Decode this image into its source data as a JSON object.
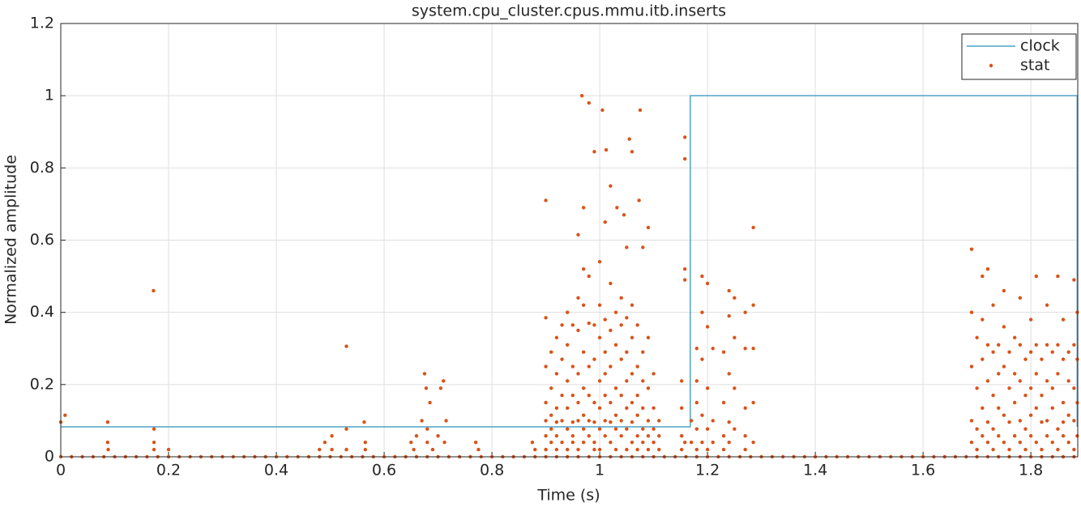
{
  "chart_data": {
    "type": "scatter",
    "title": "system.cpu_cluster.cpus.mmu.itb.inserts",
    "xlabel": "Time (s)",
    "ylabel": "Normalized amplitude",
    "xlim": [
      0,
      1.887
    ],
    "ylim": [
      0,
      1.2
    ],
    "xticks": [
      0,
      0.2,
      0.4,
      0.6,
      0.8,
      1,
      1.2,
      1.4,
      1.6,
      1.8
    ],
    "yticks": [
      0,
      0.2,
      0.4,
      0.6,
      0.8,
      1,
      1.2
    ],
    "grid": true,
    "legend": "top-right",
    "series": [
      {
        "name": "clock",
        "type": "line",
        "color": "#4fa3c7",
        "x": [
          0,
          1.168,
          1.168,
          1.886,
          1.886
        ],
        "values": [
          0.083,
          0.083,
          1,
          1,
          0.083
        ]
      },
      {
        "name": "stat",
        "type": "scatter",
        "color": "#d95319",
        "x": [
          0,
          0.008,
          0.087,
          0.087,
          0.088,
          0.172,
          0.173,
          0.173,
          0.173,
          0.2,
          0.48,
          0.49,
          0.503,
          0.503,
          0.53,
          0.53,
          0.53,
          0.563,
          0.565,
          0.565,
          0.65,
          0.655,
          0.66,
          0.67,
          0.675,
          0.678,
          0.68,
          0.68,
          0.685,
          0.69,
          0.7,
          0.705,
          0.71,
          0.712,
          0.715,
          0.77,
          0.775,
          0.875,
          0.88,
          0.9,
          0.967,
          0.97,
          0.96,
          0.98,
          0.99,
          1.005,
          1.012,
          1.02,
          1.032,
          1.055,
          1.06,
          1.075,
          1.073,
          1.09,
          1.0,
          1.01,
          1.045,
          0.97,
          1.05,
          1.08,
          0.9,
          0.9,
          0.9,
          0.9,
          0.9,
          0.9,
          0.91,
          0.91,
          0.91,
          0.91,
          0.91,
          0.92,
          0.92,
          0.92,
          0.92,
          0.92,
          0.92,
          0.93,
          0.93,
          0.93,
          0.93,
          0.93,
          0.94,
          0.94,
          0.94,
          0.94,
          0.94,
          0.94,
          0.95,
          0.95,
          0.95,
          0.95,
          0.95,
          0.95,
          0.96,
          0.96,
          0.96,
          0.96,
          0.96,
          0.96,
          0.97,
          0.97,
          0.97,
          0.97,
          0.97,
          0.97,
          0.98,
          0.98,
          0.98,
          0.98,
          0.98,
          0.98,
          0.99,
          0.99,
          0.99,
          0.99,
          0.99,
          0.99,
          1.0,
          1.0,
          1.0,
          1.0,
          1.0,
          1.0,
          1.01,
          1.01,
          1.01,
          1.01,
          1.01,
          1.01,
          1.02,
          1.02,
          1.02,
          1.02,
          1.02,
          1.02,
          1.03,
          1.03,
          1.03,
          1.03,
          1.03,
          1.03,
          1.04,
          1.04,
          1.04,
          1.04,
          1.04,
          1.04,
          1.05,
          1.05,
          1.05,
          1.05,
          1.05,
          1.05,
          1.06,
          1.06,
          1.06,
          1.06,
          1.06,
          1.06,
          1.07,
          1.07,
          1.07,
          1.07,
          1.07,
          1.07,
          1.08,
          1.08,
          1.08,
          1.08,
          1.08,
          1.09,
          1.09,
          1.09,
          1.09,
          1.09,
          1.1,
          1.1,
          1.1,
          1.1,
          1.11,
          1.11,
          1.11,
          1.152,
          1.152,
          1.152,
          1.152,
          1.158,
          1.158,
          1.158,
          1.158,
          1.158,
          1.17,
          1.17,
          1.18,
          1.18,
          1.18,
          1.18,
          1.18,
          1.19,
          1.19,
          1.19,
          1.19,
          1.19,
          1.2,
          1.2,
          1.2,
          1.2,
          1.2,
          1.21,
          1.21,
          1.21,
          1.23,
          1.23,
          1.23,
          1.23,
          1.24,
          1.24,
          1.24,
          1.24,
          1.24,
          1.25,
          1.25,
          1.25,
          1.25,
          1.27,
          1.27,
          1.27,
          1.27,
          1.27,
          1.285,
          1.285,
          1.285,
          1.285,
          1.285,
          1.69,
          1.69,
          1.69,
          1.69,
          1.69,
          1.7,
          1.7,
          1.7,
          1.7,
          1.71,
          1.71,
          1.71,
          1.71,
          1.71,
          1.72,
          1.72,
          1.72,
          1.72,
          1.72,
          1.73,
          1.73,
          1.73,
          1.73,
          1.73,
          1.74,
          1.74,
          1.74,
          1.74,
          1.75,
          1.75,
          1.75,
          1.75,
          1.75,
          1.76,
          1.76,
          1.76,
          1.76,
          1.77,
          1.77,
          1.77,
          1.77,
          1.78,
          1.78,
          1.78,
          1.78,
          1.78,
          1.79,
          1.79,
          1.79,
          1.79,
          1.8,
          1.8,
          1.8,
          1.8,
          1.8,
          1.81,
          1.81,
          1.81,
          1.81,
          1.81,
          1.82,
          1.82,
          1.82,
          1.82,
          1.83,
          1.83,
          1.83,
          1.83,
          1.83,
          1.84,
          1.84,
          1.84,
          1.84,
          1.85,
          1.85,
          1.85,
          1.85,
          1.85,
          1.86,
          1.86,
          1.86,
          1.86,
          1.86,
          1.87,
          1.87,
          1.87,
          1.87,
          1.88,
          1.88,
          1.88,
          1.88,
          1.88,
          1.886,
          1.886,
          1.886,
          1.886,
          0,
          0.02,
          0.04,
          0.06,
          0.08,
          0.1,
          0.12,
          0.14,
          0.16,
          0.18,
          0.2,
          0.22,
          0.24,
          0.26,
          0.28,
          0.3,
          0.32,
          0.34,
          0.36,
          0.38,
          0.4,
          0.42,
          0.44,
          0.46,
          0.48,
          0.5,
          0.52,
          0.54,
          0.56,
          0.58,
          0.6,
          0.62,
          0.64,
          0.66,
          0.68,
          0.7,
          0.72,
          0.74,
          0.76,
          0.78,
          0.8,
          0.82,
          0.84,
          0.86,
          0.88,
          0.9,
          0.92,
          0.94,
          0.96,
          0.98,
          1,
          1.02,
          1.04,
          1.06,
          1.08,
          1.1,
          1.12,
          1.14,
          1.16,
          1.18,
          1.2,
          1.22,
          1.24,
          1.26,
          1.28,
          1.3,
          1.32,
          1.34,
          1.36,
          1.38,
          1.4,
          1.42,
          1.44,
          1.46,
          1.48,
          1.5,
          1.52,
          1.54,
          1.56,
          1.58,
          1.6,
          1.62,
          1.64,
          1.66,
          1.68,
          1.7,
          1.72,
          1.74,
          1.76,
          1.78,
          1.8,
          1.82,
          1.84,
          1.86,
          1.88
        ],
        "values": [
          0.096,
          0.115,
          0.096,
          0.04,
          0.02,
          0.46,
          0.077,
          0.04,
          0.02,
          0.02,
          0.02,
          0.04,
          0.058,
          0.02,
          0.306,
          0.077,
          0.02,
          0.096,
          0.04,
          0.02,
          0.04,
          0.02,
          0.058,
          0.1,
          0.23,
          0.19,
          0.077,
          0.04,
          0.15,
          0.02,
          0.058,
          0.19,
          0.21,
          0.04,
          0.1,
          0.04,
          0.02,
          0.04,
          0.02,
          0.71,
          1.0,
          0.69,
          0.615,
          0.98,
          0.845,
          0.96,
          0.85,
          0.75,
          0.69,
          0.88,
          0.845,
          0.96,
          0.71,
          0.635,
          0.54,
          0.65,
          0.67,
          0.52,
          0.58,
          0.58,
          0.385,
          0.25,
          0.15,
          0.1,
          0.058,
          0.02,
          0.29,
          0.19,
          0.115,
          0.077,
          0.04,
          0.33,
          0.23,
          0.135,
          0.096,
          0.058,
          0.02,
          0.365,
          0.27,
          0.17,
          0.1,
          0.04,
          0.4,
          0.31,
          0.21,
          0.135,
          0.077,
          0.02,
          0.365,
          0.25,
          0.17,
          0.096,
          0.058,
          0.04,
          0.44,
          0.35,
          0.23,
          0.15,
          0.1,
          0.02,
          0.42,
          0.29,
          0.19,
          0.115,
          0.077,
          0.04,
          0.5,
          0.37,
          0.25,
          0.17,
          0.1,
          0.058,
          0.365,
          0.27,
          0.15,
          0.096,
          0.04,
          0.02,
          0.42,
          0.33,
          0.21,
          0.135,
          0.077,
          0.02,
          0.38,
          0.29,
          0.23,
          0.17,
          0.1,
          0.058,
          0.48,
          0.35,
          0.25,
          0.15,
          0.096,
          0.04,
          0.4,
          0.31,
          0.19,
          0.115,
          0.077,
          0.02,
          0.44,
          0.365,
          0.27,
          0.17,
          0.1,
          0.058,
          0.385,
          0.29,
          0.21,
          0.135,
          0.077,
          0.02,
          0.42,
          0.33,
          0.23,
          0.15,
          0.096,
          0.04,
          0.365,
          0.25,
          0.17,
          0.115,
          0.058,
          0.02,
          0.29,
          0.21,
          0.135,
          0.077,
          0.04,
          0.33,
          0.19,
          0.1,
          0.058,
          0.02,
          0.23,
          0.135,
          0.077,
          0.04,
          0.1,
          0.058,
          0.02,
          0.21,
          0.135,
          0.058,
          0.02,
          0.885,
          0.825,
          0.52,
          0.49,
          0.04,
          0.1,
          0.04,
          0.3,
          0.21,
          0.15,
          0.077,
          0.02,
          0.4,
          0.5,
          0.27,
          0.115,
          0.04,
          0.48,
          0.36,
          0.19,
          0.077,
          0.02,
          0.3,
          0.1,
          0.04,
          0.29,
          0.15,
          0.058,
          0.02,
          0.46,
          0.39,
          0.23,
          0.096,
          0.04,
          0.44,
          0.33,
          0.19,
          0.077,
          0.4,
          0.3,
          0.135,
          0.058,
          0.02,
          0.635,
          0.42,
          0.3,
          0.15,
          0.04,
          0.575,
          0.4,
          0.25,
          0.1,
          0.04,
          0.33,
          0.19,
          0.077,
          0.02,
          0.5,
          0.38,
          0.27,
          0.135,
          0.058,
          0.52,
          0.31,
          0.21,
          0.096,
          0.04,
          0.42,
          0.29,
          0.17,
          0.077,
          0.02,
          0.31,
          0.23,
          0.135,
          0.058,
          0.46,
          0.36,
          0.25,
          0.115,
          0.04,
          0.29,
          0.19,
          0.096,
          0.02,
          0.33,
          0.23,
          0.15,
          0.058,
          0.44,
          0.31,
          0.21,
          0.1,
          0.04,
          0.27,
          0.17,
          0.077,
          0.02,
          0.38,
          0.29,
          0.19,
          0.115,
          0.058,
          0.5,
          0.31,
          0.23,
          0.135,
          0.04,
          0.27,
          0.17,
          0.096,
          0.02,
          0.42,
          0.31,
          0.21,
          0.1,
          0.058,
          0.29,
          0.19,
          0.135,
          0.04,
          0.5,
          0.31,
          0.23,
          0.077,
          0.02,
          0.38,
          0.27,
          0.15,
          0.096,
          0.058,
          0.29,
          0.21,
          0.115,
          0.04,
          0.49,
          0.31,
          0.19,
          0.1,
          0.02,
          0.4,
          0.27,
          0.15,
          0.058,
          0,
          0,
          0,
          0,
          0,
          0,
          0,
          0,
          0,
          0,
          0,
          0,
          0,
          0,
          0,
          0,
          0,
          0,
          0,
          0,
          0,
          0,
          0,
          0,
          0,
          0,
          0,
          0,
          0,
          0,
          0,
          0,
          0,
          0,
          0,
          0,
          0,
          0,
          0,
          0,
          0,
          0,
          0,
          0,
          0,
          0,
          0,
          0,
          0,
          0,
          0,
          0,
          0,
          0,
          0,
          0,
          0,
          0,
          0,
          0,
          0,
          0,
          0,
          0,
          0,
          0,
          0,
          0,
          0,
          0,
          0,
          0,
          0,
          0,
          0,
          0,
          0,
          0,
          0,
          0,
          0,
          0,
          0,
          0,
          0,
          0,
          0,
          0,
          0,
          0,
          0,
          0,
          0,
          0,
          0
        ]
      }
    ]
  }
}
